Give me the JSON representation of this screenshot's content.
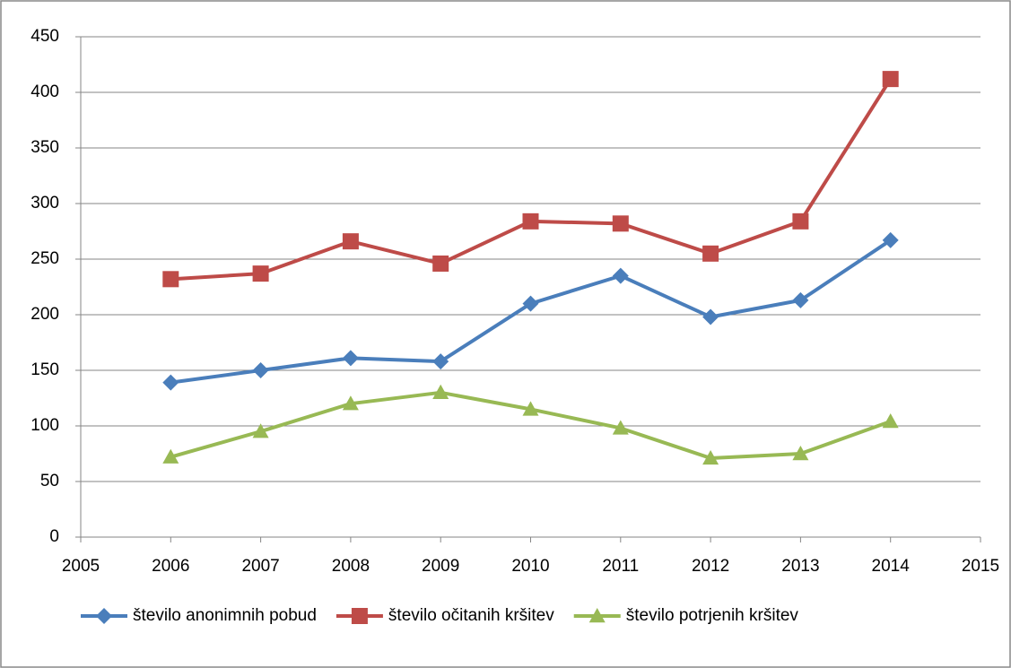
{
  "chart_data": {
    "type": "line",
    "x": [
      2006,
      2007,
      2008,
      2009,
      2010,
      2011,
      2012,
      2013,
      2014
    ],
    "series": [
      {
        "name": "število anonimnih pobud",
        "color": "#4a7ebb",
        "marker": "diamond",
        "values": [
          139,
          150,
          161,
          158,
          210,
          235,
          198,
          213,
          267
        ]
      },
      {
        "name": "število očitanih kršitev",
        "color": "#be4b48",
        "marker": "square",
        "values": [
          232,
          237,
          266,
          246,
          284,
          282,
          255,
          284,
          412
        ]
      },
      {
        "name": "število potrjenih kršitev",
        "color": "#98b954",
        "marker": "triangle",
        "values": [
          72,
          95,
          120,
          130,
          115,
          98,
          71,
          75,
          104
        ]
      }
    ],
    "xlim": [
      2005,
      2015
    ],
    "xticks": [
      2005,
      2006,
      2007,
      2008,
      2009,
      2010,
      2011,
      2012,
      2013,
      2014,
      2015
    ],
    "ylim": [
      0,
      450
    ],
    "yticks": [
      0,
      50,
      100,
      150,
      200,
      250,
      300,
      350,
      400,
      450
    ],
    "grid": true,
    "legend": "bottom"
  }
}
